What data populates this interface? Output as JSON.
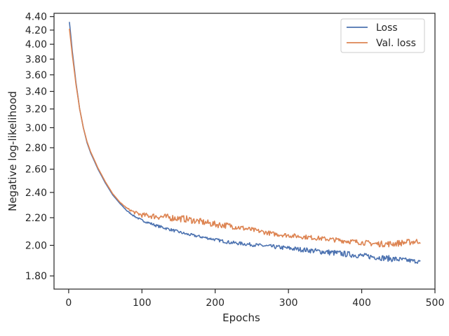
{
  "chart_data": {
    "type": "line",
    "xlabel": "Epochs",
    "ylabel": "Negative log-likelihood",
    "xlim": [
      -20,
      500
    ],
    "ylim": [
      1.72,
      4.45
    ],
    "y_scale": "log",
    "x_ticks": [
      0,
      100,
      200,
      300,
      400,
      500
    ],
    "x_tick_labels": [
      "0",
      "100",
      "200",
      "300",
      "400",
      "500"
    ],
    "y_ticks": [
      1.8,
      2.0,
      2.2,
      2.4,
      2.6,
      2.8,
      3.0,
      3.2,
      3.4,
      3.6,
      3.8,
      4.0,
      4.2,
      4.4
    ],
    "y_tick_labels": [
      "1.80",
      "2.00",
      "2.20",
      "2.40",
      "2.60",
      "2.80",
      "3.00",
      "3.20",
      "3.40",
      "3.60",
      "3.80",
      "4.00",
      "4.20",
      "4.40"
    ],
    "grid": false,
    "legend_position": "top-right",
    "series": [
      {
        "name": "Loss",
        "color": "#4c72b0",
        "x": [
          1,
          5,
          10,
          15,
          20,
          25,
          30,
          40,
          50,
          60,
          70,
          80,
          90,
          100,
          120,
          140,
          160,
          180,
          200,
          220,
          240,
          260,
          280,
          300,
          320,
          340,
          360,
          380,
          400,
          420,
          440,
          460,
          480
        ],
        "y": [
          4.32,
          3.9,
          3.5,
          3.2,
          3.0,
          2.85,
          2.75,
          2.6,
          2.48,
          2.38,
          2.31,
          2.25,
          2.21,
          2.18,
          2.14,
          2.11,
          2.08,
          2.06,
          2.04,
          2.02,
          2.01,
          2.0,
          1.99,
          1.98,
          1.97,
          1.96,
          1.95,
          1.94,
          1.93,
          1.92,
          1.91,
          1.9,
          1.89
        ],
        "noise": [
          0,
          0,
          0,
          0,
          0,
          0,
          0,
          0,
          0,
          0,
          0,
          0.004,
          0.006,
          0.008,
          0.01,
          0.01,
          0.01,
          0.01,
          0.01,
          0.012,
          0.012,
          0.012,
          0.014,
          0.016,
          0.016,
          0.018,
          0.02,
          0.02,
          0.018,
          0.018,
          0.02,
          0.016,
          0.012
        ]
      },
      {
        "name": "Val. loss",
        "color": "#dd8452",
        "x": [
          1,
          5,
          10,
          15,
          20,
          25,
          30,
          40,
          50,
          60,
          70,
          80,
          90,
          100,
          120,
          140,
          160,
          180,
          200,
          220,
          240,
          260,
          280,
          300,
          320,
          340,
          360,
          380,
          400,
          420,
          440,
          460,
          480
        ],
        "y": [
          4.22,
          3.85,
          3.48,
          3.2,
          3.0,
          2.86,
          2.76,
          2.61,
          2.49,
          2.39,
          2.32,
          2.27,
          2.24,
          2.22,
          2.21,
          2.2,
          2.19,
          2.17,
          2.15,
          2.14,
          2.12,
          2.1,
          2.08,
          2.07,
          2.06,
          2.05,
          2.04,
          2.03,
          2.02,
          2.01,
          2.01,
          2.02,
          2.03
        ],
        "noise": [
          0,
          0,
          0,
          0,
          0,
          0,
          0,
          0,
          0,
          0,
          0,
          0.006,
          0.012,
          0.018,
          0.024,
          0.026,
          0.026,
          0.024,
          0.024,
          0.022,
          0.02,
          0.016,
          0.016,
          0.016,
          0.016,
          0.016,
          0.016,
          0.018,
          0.018,
          0.02,
          0.022,
          0.022,
          0.02
        ]
      }
    ]
  }
}
